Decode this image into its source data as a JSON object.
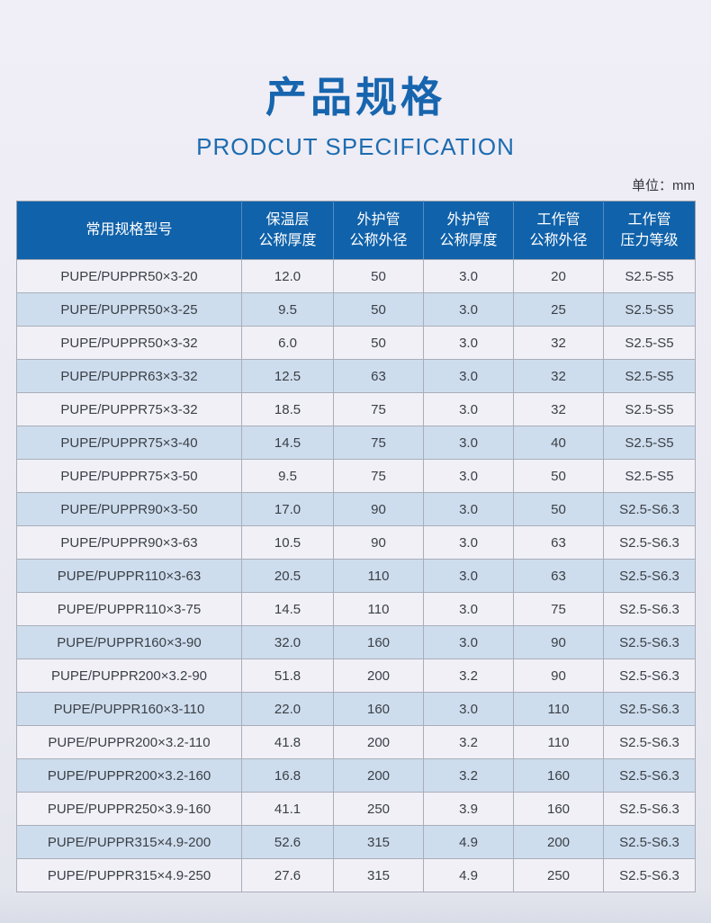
{
  "page": {
    "title": "产品规格",
    "subtitle": "PRODCUT SPECIFICATION",
    "unit_label": "单位：mm"
  },
  "colors": {
    "title_blue": "#1765ae",
    "header_bg": "#1062aa",
    "header_text": "#ffffff",
    "row_light": "#f1f0f7",
    "row_blue": "#cedded",
    "grid_line": "#a9aeb9"
  },
  "table": {
    "headers": [
      [
        "常用规格型号"
      ],
      [
        "保温层",
        "公称厚度"
      ],
      [
        "外护管",
        "公称外径"
      ],
      [
        "外护管",
        "公称厚度"
      ],
      [
        "工作管",
        "公称外径"
      ],
      [
        "工作管",
        "压力等级"
      ]
    ],
    "rows": [
      [
        "PUPE/PUPPR50×3-20",
        "12.0",
        "50",
        "3.0",
        "20",
        "S2.5-S5"
      ],
      [
        "PUPE/PUPPR50×3-25",
        "9.5",
        "50",
        "3.0",
        "25",
        "S2.5-S5"
      ],
      [
        "PUPE/PUPPR50×3-32",
        "6.0",
        "50",
        "3.0",
        "32",
        "S2.5-S5"
      ],
      [
        "PUPE/PUPPR63×3-32",
        "12.5",
        "63",
        "3.0",
        "32",
        "S2.5-S5"
      ],
      [
        "PUPE/PUPPR75×3-32",
        "18.5",
        "75",
        "3.0",
        "32",
        "S2.5-S5"
      ],
      [
        "PUPE/PUPPR75×3-40",
        "14.5",
        "75",
        "3.0",
        "40",
        "S2.5-S5"
      ],
      [
        "PUPE/PUPPR75×3-50",
        "9.5",
        "75",
        "3.0",
        "50",
        "S2.5-S5"
      ],
      [
        "PUPE/PUPPR90×3-50",
        "17.0",
        "90",
        "3.0",
        "50",
        "S2.5-S6.3"
      ],
      [
        "PUPE/PUPPR90×3-63",
        "10.5",
        "90",
        "3.0",
        "63",
        "S2.5-S6.3"
      ],
      [
        "PUPE/PUPPR110×3-63",
        "20.5",
        "110",
        "3.0",
        "63",
        "S2.5-S6.3"
      ],
      [
        "PUPE/PUPPR110×3-75",
        "14.5",
        "110",
        "3.0",
        "75",
        "S2.5-S6.3"
      ],
      [
        "PUPE/PUPPR160×3-90",
        "32.0",
        "160",
        "3.0",
        "90",
        "S2.5-S6.3"
      ],
      [
        "PUPE/PUPPR200×3.2-90",
        "51.8",
        "200",
        "3.2",
        "90",
        "S2.5-S6.3"
      ],
      [
        "PUPE/PUPPR160×3-110",
        "22.0",
        "160",
        "3.0",
        "110",
        "S2.5-S6.3"
      ],
      [
        "PUPE/PUPPR200×3.2-110",
        "41.8",
        "200",
        "3.2",
        "110",
        "S2.5-S6.3"
      ],
      [
        "PUPE/PUPPR200×3.2-160",
        "16.8",
        "200",
        "3.2",
        "160",
        "S2.5-S6.3"
      ],
      [
        "PUPE/PUPPR250×3.9-160",
        "41.1",
        "250",
        "3.9",
        "160",
        "S2.5-S6.3"
      ],
      [
        "PUPE/PUPPR315×4.9-200",
        "52.6",
        "315",
        "4.9",
        "200",
        "S2.5-S6.3"
      ],
      [
        "PUPE/PUPPR315×4.9-250",
        "27.6",
        "315",
        "4.9",
        "250",
        "S2.5-S6.3"
      ]
    ]
  }
}
